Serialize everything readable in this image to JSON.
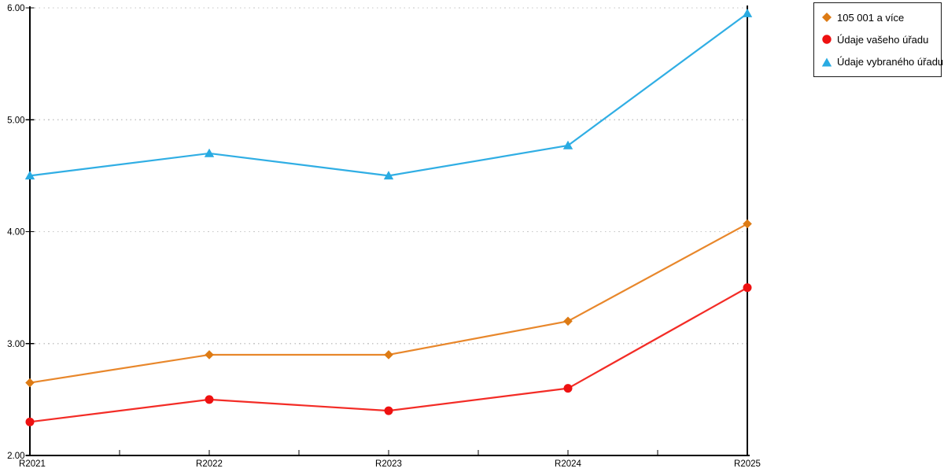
{
  "legend": {
    "items": [
      {
        "label": "105 001 a více",
        "marker": "diamond-icon",
        "color": "#DD7B14"
      },
      {
        "label": "Údaje vašeho úřadu",
        "marker": "circle-icon",
        "color": "#EE1111"
      },
      {
        "label": "Údaje vybraného úřadu",
        "marker": "triangle-icon",
        "color": "#29ABE2"
      }
    ]
  },
  "chart_data": {
    "type": "line",
    "title": "",
    "xlabel": "",
    "ylabel": "",
    "categories": [
      "R2021",
      "R2022",
      "R2023",
      "R2024",
      "R2025"
    ],
    "series": [
      {
        "name": "105 001 a více",
        "marker": "diamond",
        "marker_color": "#DD7B14",
        "line_color": "#E8872B",
        "values": [
          2.65,
          2.9,
          2.9,
          3.2,
          4.07
        ]
      },
      {
        "name": "Údaje vašeho úřadu",
        "marker": "circle",
        "marker_color": "#EE1111",
        "line_color": "#F32C26",
        "values": [
          2.3,
          2.5,
          2.4,
          2.6,
          3.5
        ]
      },
      {
        "name": "Údaje vybraného úřadu",
        "marker": "triangle",
        "marker_color": "#29ABE2",
        "line_color": "#30AEE4",
        "values": [
          4.5,
          4.7,
          4.5,
          4.77,
          5.95
        ]
      }
    ],
    "ylim": [
      2,
      6
    ],
    "y_ticks": [
      "2.00",
      "3.00",
      "4.00",
      "5.00",
      "6.00"
    ],
    "grid": "horizontal-dotted",
    "grid_color": "#C6C6C6",
    "axis_color": "#000000",
    "minor_x_ticks_between_categories": true,
    "legend_position": "outside-top-right"
  }
}
